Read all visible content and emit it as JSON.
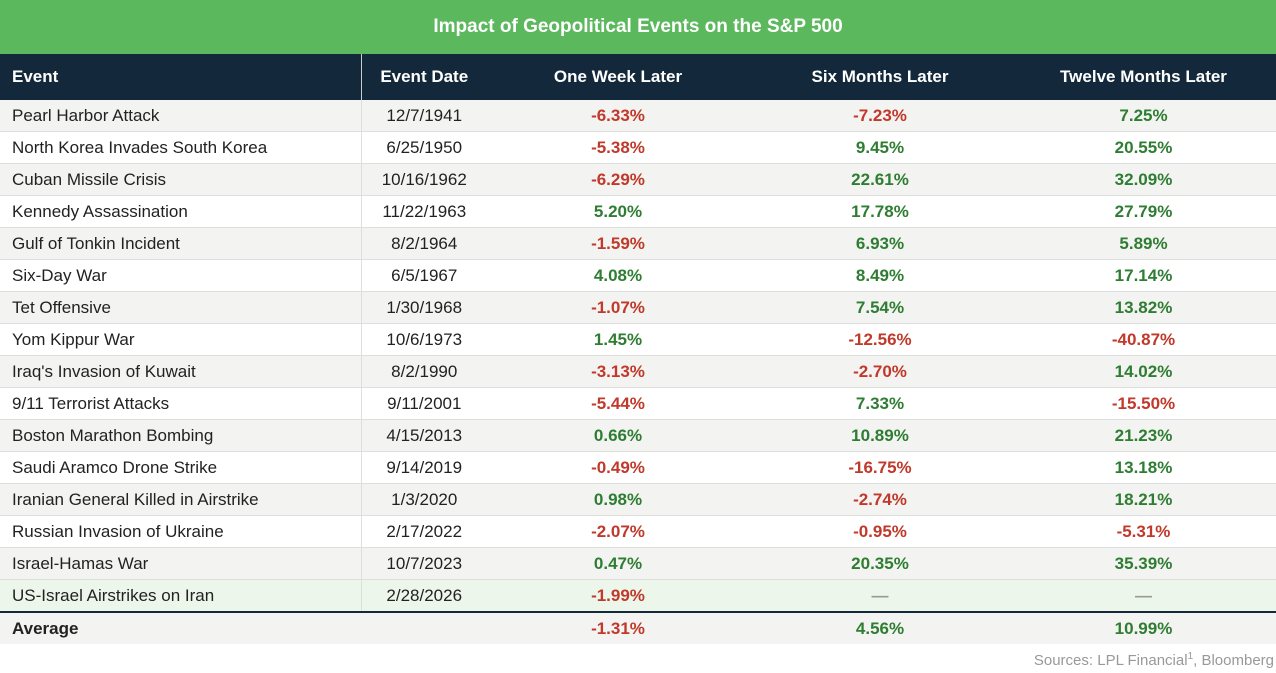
{
  "title": "Impact of Geopolitical Events on the S&P 500",
  "columns": [
    "Event",
    "Event Date",
    "One Week Later",
    "Six Months Later",
    "Twelve Months Later"
  ],
  "colors": {
    "title_bg": "#5bb85d",
    "header_bg": "#13283a",
    "negative": "#c0392b",
    "positive": "#2e7d32",
    "highlight_row": "#edf6ea"
  },
  "chart_data": {
    "type": "table",
    "title": "Impact of Geopolitical Events on the S&P 500",
    "columns": [
      "Event",
      "Event Date",
      "One Week Later",
      "Six Months Later",
      "Twelve Months Later"
    ],
    "rows": [
      [
        "Pearl Harbor Attack",
        "12/7/1941",
        "-6.33%",
        "-7.23%",
        "7.25%"
      ],
      [
        "North Korea Invades South Korea",
        "6/25/1950",
        "-5.38%",
        "9.45%",
        "20.55%"
      ],
      [
        "Cuban Missile Crisis",
        "10/16/1962",
        "-6.29%",
        "22.61%",
        "32.09%"
      ],
      [
        "Kennedy Assassination",
        "11/22/1963",
        "5.20%",
        "17.78%",
        "27.79%"
      ],
      [
        "Gulf of Tonkin Incident",
        "8/2/1964",
        "-1.59%",
        "6.93%",
        "5.89%"
      ],
      [
        "Six-Day War",
        "6/5/1967",
        "4.08%",
        "8.49%",
        "17.14%"
      ],
      [
        "Tet Offensive",
        "1/30/1968",
        "-1.07%",
        "7.54%",
        "13.82%"
      ],
      [
        "Yom Kippur War",
        "10/6/1973",
        "1.45%",
        "-12.56%",
        "-40.87%"
      ],
      [
        "Iraq's Invasion of Kuwait",
        "8/2/1990",
        "-3.13%",
        "-2.70%",
        "14.02%"
      ],
      [
        "9/11 Terrorist Attacks",
        "9/11/2001",
        "-5.44%",
        "7.33%",
        "-15.50%"
      ],
      [
        "Boston Marathon Bombing",
        "4/15/2013",
        "0.66%",
        "10.89%",
        "21.23%"
      ],
      [
        "Saudi Aramco Drone Strike",
        "9/14/2019",
        "-0.49%",
        "-16.75%",
        "13.18%"
      ],
      [
        "Iranian General Killed in Airstrike",
        "1/3/2020",
        "0.98%",
        "-2.74%",
        "18.21%"
      ],
      [
        "Russian Invasion of Ukraine",
        "2/17/2022",
        "-2.07%",
        "-0.95%",
        "-5.31%"
      ],
      [
        "Israel-Hamas War",
        "10/7/2023",
        "0.47%",
        "20.35%",
        "35.39%"
      ],
      [
        "US-Israel Airstrikes on Iran",
        "2/28/2026",
        "-1.99%",
        "—",
        "—"
      ]
    ],
    "highlighted_row": "US-Israel Airstrikes on Iran",
    "average": [
      "Average",
      "",
      "-1.31%",
      "4.56%",
      "10.99%"
    ]
  },
  "source": {
    "text": "Sources: LPL Financial",
    "footnote": "1",
    "suffix": ", Bloomberg"
  }
}
